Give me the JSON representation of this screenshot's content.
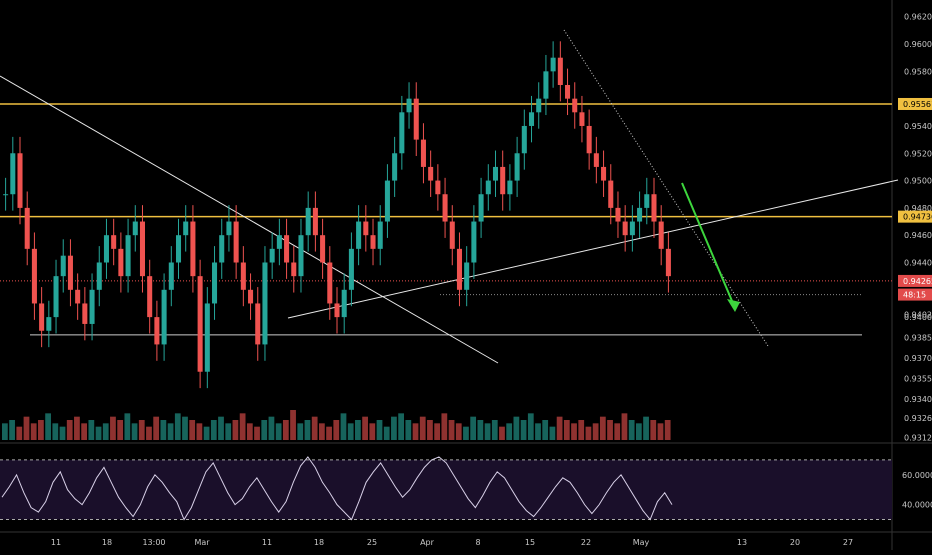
{
  "chart_data": [
    {
      "type": "candlestick",
      "title": "",
      "x_axis_labels": [
        "11",
        "18",
        "13:00",
        "Mar",
        "11",
        "18",
        "25",
        "Apr",
        "8",
        "15",
        "22",
        "May",
        "13",
        "20",
        "27"
      ],
      "y_axis_ticks": [
        "0.96200",
        "0.96000",
        "0.95800",
        "0.95540",
        "0.95400",
        "0.95200",
        "0.95000",
        "0.94800",
        "0.94600",
        "0.94400",
        "0.94020",
        "0.94000",
        "0.93850",
        "0.93700",
        "0.93550",
        "0.93400",
        "0.93260",
        "0.93120"
      ],
      "ylim": [
        0.931,
        0.9622
      ],
      "price_labels": [
        {
          "text": "0.95561",
          "value": 0.95561,
          "color": "#f0c040",
          "text_color": "#000000"
        },
        {
          "text": "0.94736",
          "value": 0.94736,
          "color": "#f0c040",
          "text_color": "#000000"
        },
        {
          "text": "0.94265",
          "value": 0.94265,
          "color": "#e24b4b",
          "text_color": "#ffffff"
        },
        {
          "text": "48:15",
          "value": 0.94165,
          "color": "#e24b4b",
          "text_color": "#ffffff"
        }
      ],
      "horizontal_levels": [
        {
          "value": 0.95561,
          "color": "#f0c040"
        },
        {
          "value": 0.94736,
          "color": "#f0c040"
        },
        {
          "value": 0.9387,
          "color": "#cccccc"
        }
      ],
      "close_series": [
        0.949,
        0.952,
        0.948,
        0.945,
        0.941,
        0.939,
        0.94,
        0.943,
        0.9445,
        0.942,
        0.941,
        0.9395,
        0.942,
        0.944,
        0.946,
        0.945,
        0.943,
        0.946,
        0.947,
        0.943,
        0.94,
        0.938,
        0.942,
        0.944,
        0.946,
        0.947,
        0.943,
        0.936,
        0.941,
        0.944,
        0.946,
        0.947,
        0.944,
        0.942,
        0.941,
        0.938,
        0.944,
        0.945,
        0.946,
        0.944,
        0.943,
        0.946,
        0.948,
        0.946,
        0.944,
        0.941,
        0.94,
        0.942,
        0.945,
        0.947,
        0.946,
        0.945,
        0.947,
        0.95,
        0.952,
        0.955,
        0.956,
        0.953,
        0.951,
        0.95,
        0.949,
        0.947,
        0.945,
        0.942,
        0.944,
        0.947,
        0.949,
        0.95,
        0.951,
        0.949,
        0.95,
        0.952,
        0.954,
        0.955,
        0.956,
        0.958,
        0.959,
        0.957,
        0.956,
        0.955,
        0.954,
        0.952,
        0.951,
        0.95,
        0.948,
        0.947,
        0.946,
        0.947,
        0.948,
        0.949,
        0.947,
        0.945,
        0.943
      ],
      "volume_series": [
        5,
        6,
        4,
        7,
        5,
        6,
        8,
        5,
        4,
        6,
        7,
        5,
        6,
        4,
        5,
        7,
        6,
        8,
        5,
        6,
        4,
        7,
        6,
        5,
        8,
        7,
        6,
        5,
        4,
        6,
        7,
        5,
        6,
        8,
        5,
        4,
        6,
        7,
        5,
        6,
        9,
        5,
        6,
        7,
        5,
        4,
        6,
        8,
        5,
        6,
        7,
        5,
        6,
        4,
        7,
        8,
        6,
        5,
        7,
        6,
        5,
        8,
        6,
        5,
        4,
        7,
        6,
        5,
        6,
        4,
        5,
        7,
        6,
        8,
        5,
        6,
        4,
        7,
        6,
        5,
        6,
        4,
        5,
        7,
        6,
        5,
        8,
        6,
        5,
        7,
        6,
        5,
        6
      ],
      "rsi_panel": {
        "ylim": [
          25,
          78
        ],
        "levels": [
          70,
          30
        ],
        "tick_labels": [
          "60.0000",
          "40.0000"
        ],
        "tick_values": [
          60,
          40
        ],
        "series": [
          45,
          52,
          60,
          48,
          38,
          35,
          42,
          55,
          62,
          50,
          44,
          40,
          48,
          58,
          65,
          55,
          45,
          38,
          32,
          40,
          52,
          60,
          55,
          48,
          42,
          30,
          38,
          50,
          62,
          68,
          58,
          48,
          40,
          44,
          52,
          58,
          50,
          42,
          35,
          42,
          55,
          66,
          72,
          65,
          55,
          48,
          40,
          35,
          30,
          42,
          55,
          62,
          68,
          60,
          52,
          45,
          50,
          58,
          65,
          70,
          72,
          68,
          60,
          52,
          44,
          38,
          46,
          55,
          62,
          58,
          50,
          42,
          36,
          32,
          38,
          45,
          52,
          58,
          55,
          48,
          40,
          34,
          40,
          48,
          55,
          60,
          52,
          44,
          36,
          30,
          42,
          48,
          40
        ]
      }
    }
  ],
  "colors": {
    "background": "#000000",
    "up": "#26a69a",
    "down": "#ef5350",
    "rsi_line": "#d8d0e8",
    "rsi_band": "#1a0f2a",
    "trendline": "#e8e8e8",
    "arrow": "#3dd63d",
    "axis_text": "#c8c8c8"
  }
}
